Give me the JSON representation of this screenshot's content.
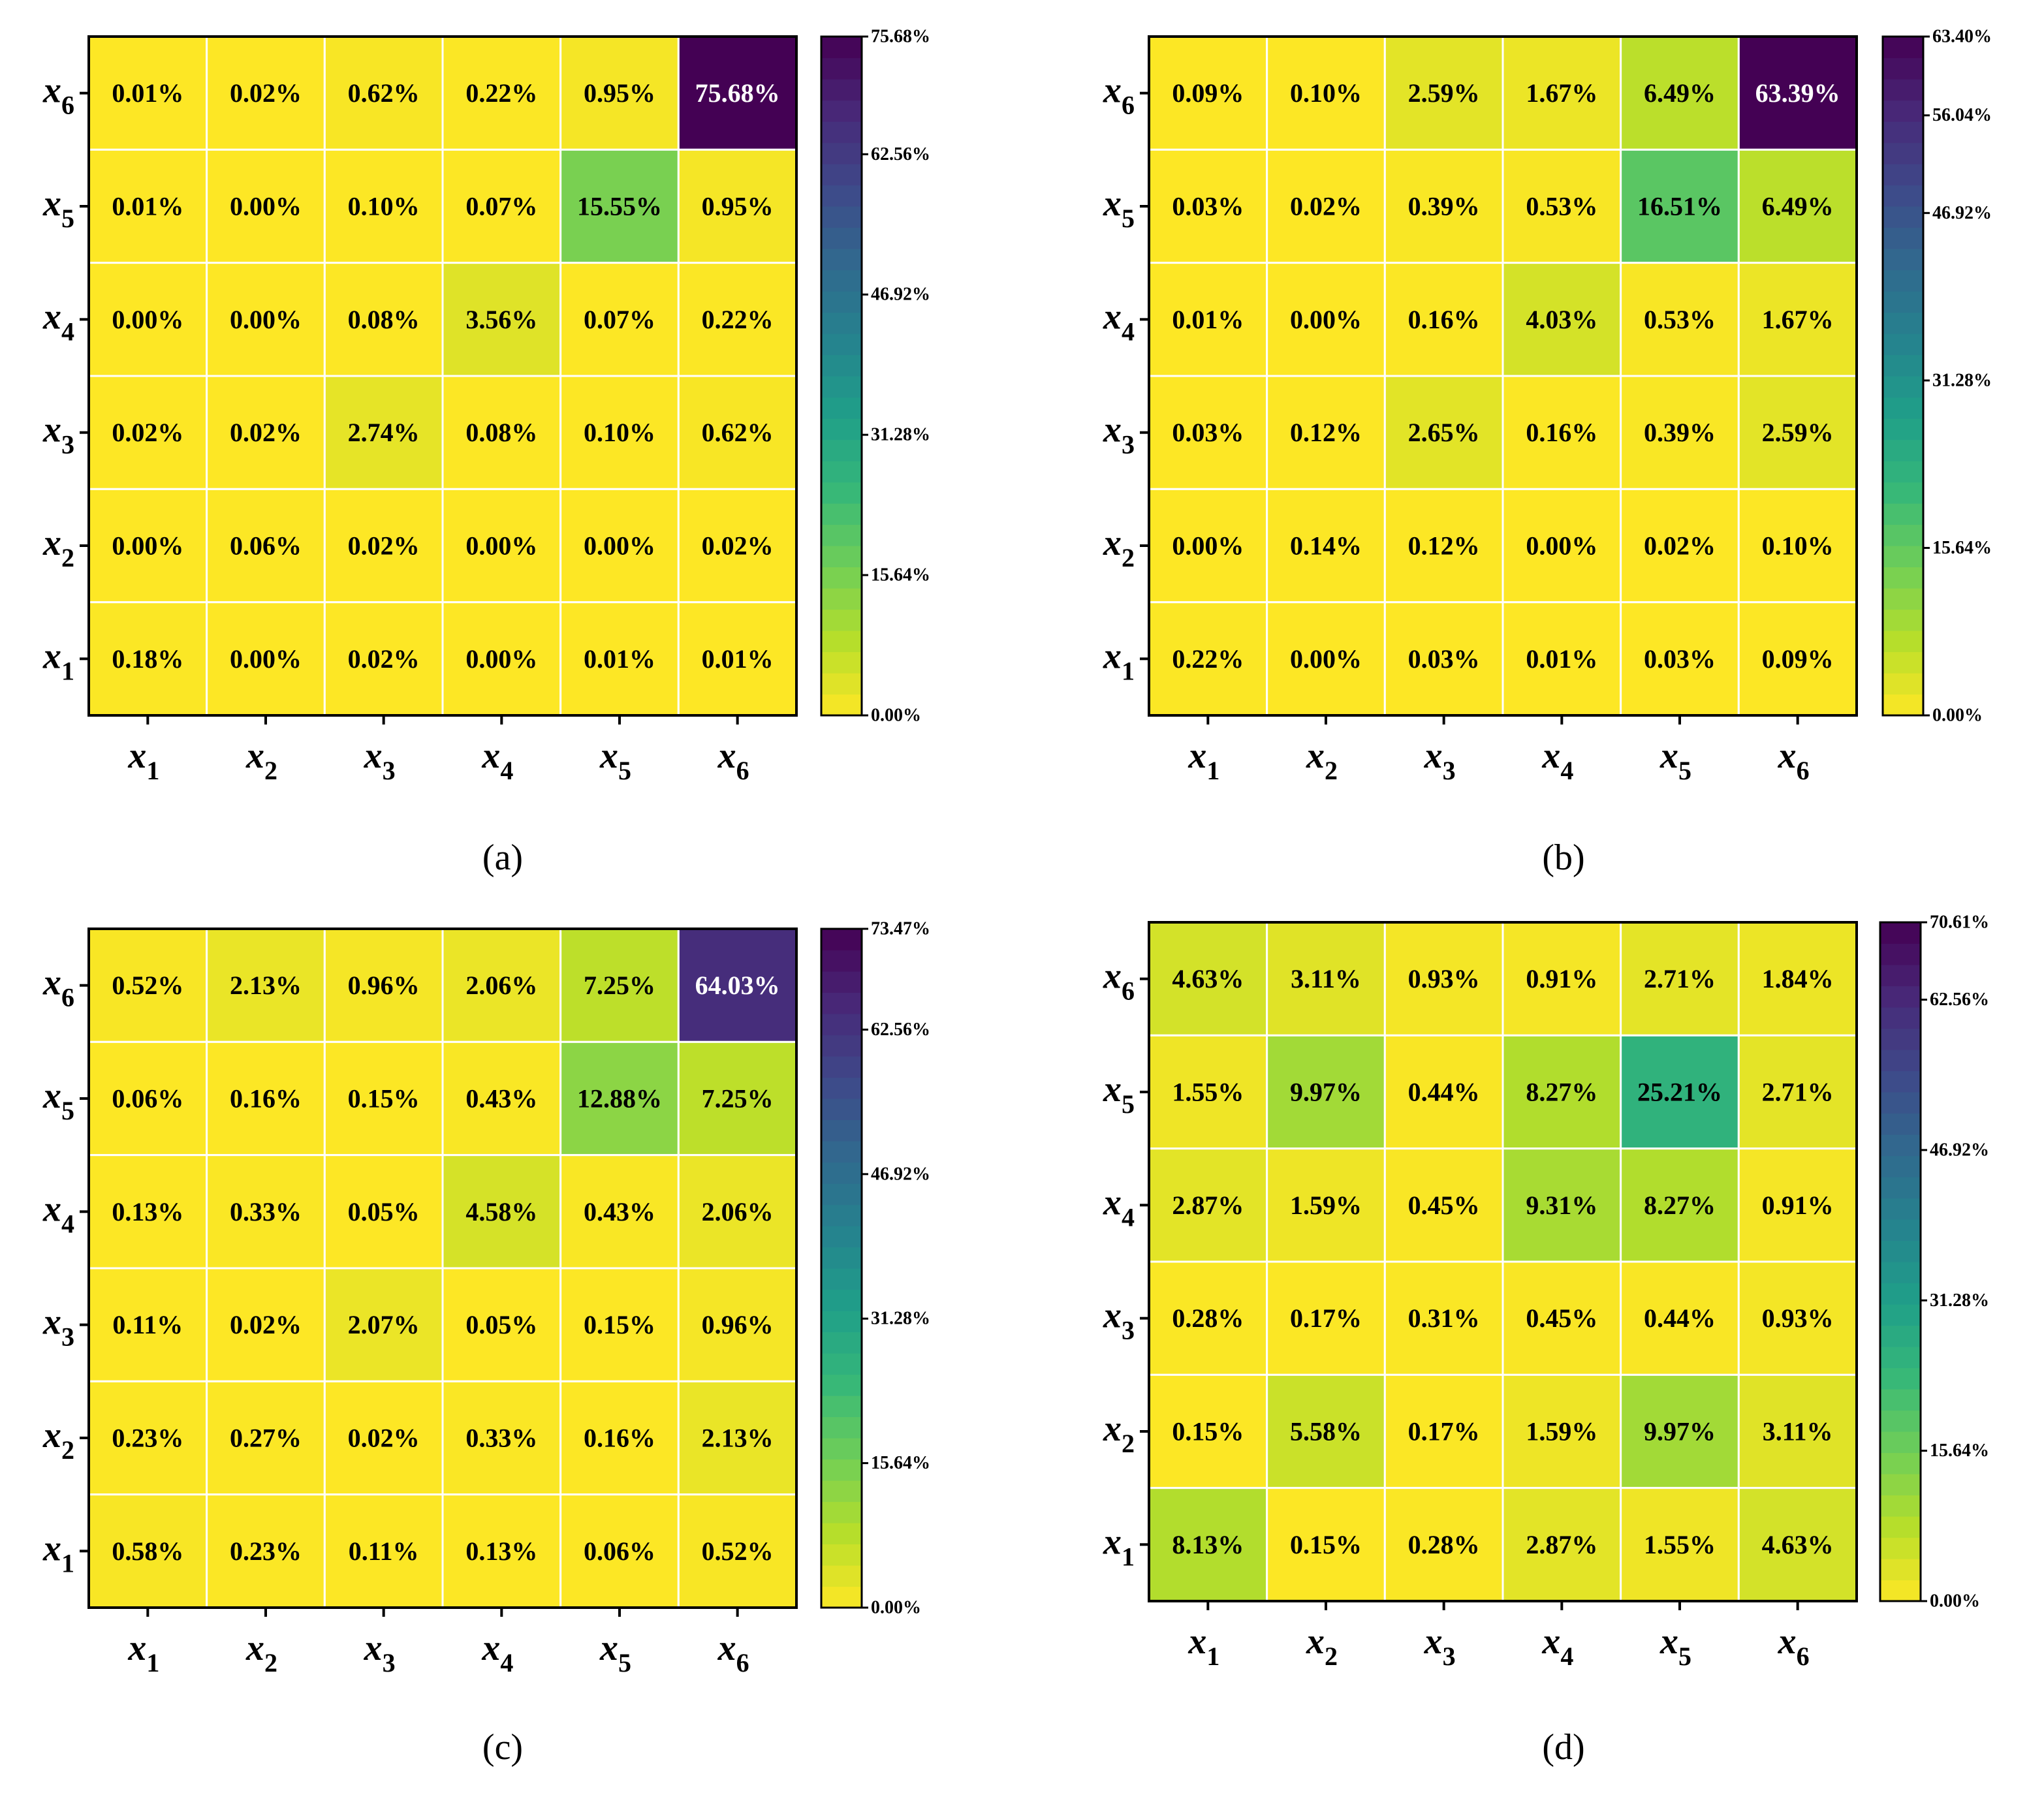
{
  "chart_data": [
    {
      "type": "heatmap",
      "panel_label": "(a)",
      "x_categories": [
        {
          "base": "x",
          "sub": "1"
        },
        {
          "base": "x",
          "sub": "2"
        },
        {
          "base": "x",
          "sub": "3"
        },
        {
          "base": "x",
          "sub": "4"
        },
        {
          "base": "x",
          "sub": "5"
        },
        {
          "base": "x",
          "sub": "6"
        }
      ],
      "y_categories_top_to_bottom": [
        {
          "base": "x",
          "sub": "6"
        },
        {
          "base": "x",
          "sub": "5"
        },
        {
          "base": "x",
          "sub": "4"
        },
        {
          "base": "x",
          "sub": "3"
        },
        {
          "base": "x",
          "sub": "2"
        },
        {
          "base": "x",
          "sub": "1"
        }
      ],
      "values_top_to_bottom": [
        [
          0.01,
          0.02,
          0.62,
          0.22,
          0.95,
          75.68
        ],
        [
          0.01,
          0.0,
          0.1,
          0.07,
          15.55,
          0.95
        ],
        [
          0.0,
          0.0,
          0.08,
          3.56,
          0.07,
          0.22
        ],
        [
          0.02,
          0.02,
          2.74,
          0.08,
          0.1,
          0.62
        ],
        [
          0.0,
          0.06,
          0.02,
          0.0,
          0.0,
          0.02
        ],
        [
          0.18,
          0.0,
          0.02,
          0.0,
          0.01,
          0.01
        ]
      ],
      "value_labels_top_to_bottom": [
        [
          "0.01%",
          "0.02%",
          "0.62%",
          "0.22%",
          "0.95%",
          "75.68%"
        ],
        [
          "0.01%",
          "0.00%",
          "0.10%",
          "0.07%",
          "15.55%",
          "0.95%"
        ],
        [
          "0.00%",
          "0.00%",
          "0.08%",
          "3.56%",
          "0.07%",
          "0.22%"
        ],
        [
          "0.02%",
          "0.02%",
          "2.74%",
          "0.08%",
          "0.10%",
          "0.62%"
        ],
        [
          "0.00%",
          "0.06%",
          "0.02%",
          "0.00%",
          "0.00%",
          "0.02%"
        ],
        [
          "0.18%",
          "0.00%",
          "0.02%",
          "0.00%",
          "0.01%",
          "0.01%"
        ]
      ],
      "colorbar": {
        "min": 0,
        "max": 75.68,
        "ticks": [
          0,
          15.64,
          31.28,
          46.92,
          62.56,
          75.68
        ],
        "tick_labels": [
          "0.00%",
          "15.64%",
          "31.28%",
          "46.92%",
          "62.56%",
          "75.68%"
        ]
      },
      "colormap": "viridis_r"
    },
    {
      "type": "heatmap",
      "panel_label": "(b)",
      "x_categories": [
        {
          "base": "x",
          "sub": "1"
        },
        {
          "base": "x",
          "sub": "2"
        },
        {
          "base": "x",
          "sub": "3"
        },
        {
          "base": "x",
          "sub": "4"
        },
        {
          "base": "x",
          "sub": "5"
        },
        {
          "base": "x",
          "sub": "6"
        }
      ],
      "y_categories_top_to_bottom": [
        {
          "base": "x",
          "sub": "6"
        },
        {
          "base": "x",
          "sub": "5"
        },
        {
          "base": "x",
          "sub": "4"
        },
        {
          "base": "x",
          "sub": "3"
        },
        {
          "base": "x",
          "sub": "2"
        },
        {
          "base": "x",
          "sub": "1"
        }
      ],
      "values_top_to_bottom": [
        [
          0.09,
          0.1,
          2.59,
          1.67,
          6.49,
          63.39
        ],
        [
          0.03,
          0.02,
          0.39,
          0.53,
          16.51,
          6.49
        ],
        [
          0.01,
          0.0,
          0.16,
          4.03,
          0.53,
          1.67
        ],
        [
          0.03,
          0.12,
          2.65,
          0.16,
          0.39,
          2.59
        ],
        [
          0.0,
          0.14,
          0.12,
          0.0,
          0.02,
          0.1
        ],
        [
          0.22,
          0.0,
          0.03,
          0.01,
          0.03,
          0.09
        ]
      ],
      "value_labels_top_to_bottom": [
        [
          "0.09%",
          "0.10%",
          "2.59%",
          "1.67%",
          "6.49%",
          "63.39%"
        ],
        [
          "0.03%",
          "0.02%",
          "0.39%",
          "0.53%",
          "16.51%",
          "6.49%"
        ],
        [
          "0.01%",
          "0.00%",
          "0.16%",
          "4.03%",
          "0.53%",
          "1.67%"
        ],
        [
          "0.03%",
          "0.12%",
          "2.65%",
          "0.16%",
          "0.39%",
          "2.59%"
        ],
        [
          "0.00%",
          "0.14%",
          "0.12%",
          "0.00%",
          "0.02%",
          "0.10%"
        ],
        [
          "0.22%",
          "0.00%",
          "0.03%",
          "0.01%",
          "0.03%",
          "0.09%"
        ]
      ],
      "colorbar": {
        "min": 0,
        "max": 63.4,
        "ticks": [
          0,
          15.64,
          31.28,
          46.92,
          56.04,
          63.4
        ],
        "tick_labels": [
          "0.00%",
          "15.64%",
          "31.28%",
          "46.92%",
          "56.04%",
          "63.40%"
        ]
      },
      "colormap": "viridis_r"
    },
    {
      "type": "heatmap",
      "panel_label": "(c)",
      "x_categories": [
        {
          "base": "x",
          "sub": "1"
        },
        {
          "base": "x",
          "sub": "2"
        },
        {
          "base": "x",
          "sub": "3"
        },
        {
          "base": "x",
          "sub": "4"
        },
        {
          "base": "x",
          "sub": "5"
        },
        {
          "base": "x",
          "sub": "6"
        }
      ],
      "y_categories_top_to_bottom": [
        {
          "base": "x",
          "sub": "6"
        },
        {
          "base": "x",
          "sub": "5"
        },
        {
          "base": "x",
          "sub": "4"
        },
        {
          "base": "x",
          "sub": "3"
        },
        {
          "base": "x",
          "sub": "2"
        },
        {
          "base": "x",
          "sub": "1"
        }
      ],
      "values_top_to_bottom": [
        [
          0.52,
          2.13,
          0.96,
          2.06,
          7.25,
          64.03
        ],
        [
          0.06,
          0.16,
          0.15,
          0.43,
          12.88,
          7.25
        ],
        [
          0.13,
          0.33,
          0.05,
          4.58,
          0.43,
          2.06
        ],
        [
          0.11,
          0.02,
          2.07,
          0.05,
          0.15,
          0.96
        ],
        [
          0.23,
          0.27,
          0.02,
          0.33,
          0.16,
          2.13
        ],
        [
          0.58,
          0.23,
          0.11,
          0.13,
          0.06,
          0.52
        ]
      ],
      "value_labels_top_to_bottom": [
        [
          "0.52%",
          "2.13%",
          "0.96%",
          "2.06%",
          "7.25%",
          "64.03%"
        ],
        [
          "0.06%",
          "0.16%",
          "0.15%",
          "0.43%",
          "12.88%",
          "7.25%"
        ],
        [
          "0.13%",
          "0.33%",
          "0.05%",
          "4.58%",
          "0.43%",
          "2.06%"
        ],
        [
          "0.11%",
          "0.02%",
          "2.07%",
          "0.05%",
          "0.15%",
          "0.96%"
        ],
        [
          "0.23%",
          "0.27%",
          "0.02%",
          "0.33%",
          "0.16%",
          "2.13%"
        ],
        [
          "0.58%",
          "0.23%",
          "0.11%",
          "0.13%",
          "0.06%",
          "0.52%"
        ]
      ],
      "colorbar": {
        "min": 0,
        "max": 73.47,
        "ticks": [
          0,
          15.64,
          31.28,
          46.92,
          62.56,
          73.47
        ],
        "tick_labels": [
          "0.00%",
          "15.64%",
          "31.28%",
          "46.92%",
          "62.56%",
          "73.47%"
        ]
      },
      "colormap": "viridis_r"
    },
    {
      "type": "heatmap",
      "panel_label": "(d)",
      "x_categories": [
        {
          "base": "x",
          "sub": "1"
        },
        {
          "base": "x",
          "sub": "2"
        },
        {
          "base": "x",
          "sub": "3"
        },
        {
          "base": "x",
          "sub": "4"
        },
        {
          "base": "x",
          "sub": "5"
        },
        {
          "base": "x",
          "sub": "6"
        }
      ],
      "y_categories_top_to_bottom": [
        {
          "base": "x",
          "sub": "6"
        },
        {
          "base": "x",
          "sub": "5"
        },
        {
          "base": "x",
          "sub": "4"
        },
        {
          "base": "x",
          "sub": "3"
        },
        {
          "base": "x",
          "sub": "2"
        },
        {
          "base": "x",
          "sub": "1"
        }
      ],
      "values_top_to_bottom": [
        [
          4.63,
          3.11,
          0.93,
          0.91,
          2.71,
          1.84
        ],
        [
          1.55,
          9.97,
          0.44,
          8.27,
          25.21,
          2.71
        ],
        [
          2.87,
          1.59,
          0.45,
          9.31,
          8.27,
          0.91
        ],
        [
          0.28,
          0.17,
          0.31,
          0.45,
          0.44,
          0.93
        ],
        [
          0.15,
          5.58,
          0.17,
          1.59,
          9.97,
          3.11
        ],
        [
          8.13,
          0.15,
          0.28,
          2.87,
          1.55,
          4.63
        ]
      ],
      "value_labels_top_to_bottom": [
        [
          "4.63%",
          "3.11%",
          "0.93%",
          "0.91%",
          "2.71%",
          "1.84%"
        ],
        [
          "1.55%",
          "9.97%",
          "0.44%",
          "8.27%",
          "25.21%",
          "2.71%"
        ],
        [
          "2.87%",
          "1.59%",
          "0.45%",
          "9.31%",
          "8.27%",
          "0.91%"
        ],
        [
          "0.28%",
          "0.17%",
          "0.31%",
          "0.45%",
          "0.44%",
          "0.93%"
        ],
        [
          "0.15%",
          "5.58%",
          "0.17%",
          "1.59%",
          "9.97%",
          "3.11%"
        ],
        [
          "8.13%",
          "0.15%",
          "0.28%",
          "2.87%",
          "1.55%",
          "4.63%"
        ]
      ],
      "colorbar": {
        "min": 0,
        "max": 70.61,
        "ticks": [
          0,
          15.64,
          31.28,
          46.92,
          62.56,
          70.61
        ],
        "tick_labels": [
          "0.00%",
          "15.64%",
          "31.28%",
          "46.92%",
          "62.56%",
          "70.61%"
        ]
      },
      "colormap": "viridis_r"
    }
  ],
  "colors": {
    "viridis_stops": [
      "#440154",
      "#482878",
      "#3e4989",
      "#31688e",
      "#26828e",
      "#1f9e89",
      "#35b779",
      "#6ece58",
      "#b5de2b",
      "#fde725"
    ],
    "grid_line": "#ffffff",
    "axis": "#000000",
    "text_dark": "#000000",
    "text_light": "#ffffff"
  }
}
